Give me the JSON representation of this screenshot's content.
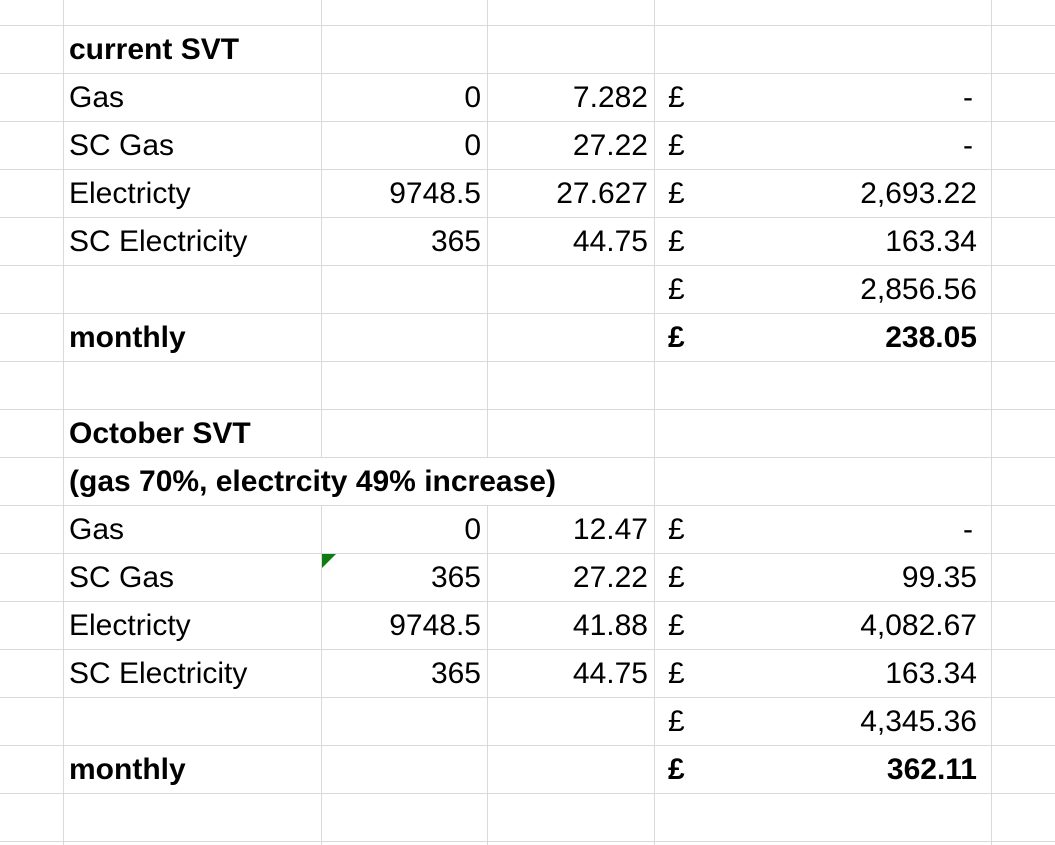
{
  "grid": {
    "gridline_color": "#D9D9D9",
    "error_indicator_color": "#107C10",
    "text_color": "#000000",
    "background_color": "#FFFFFF"
  },
  "sections": [
    {
      "title": "current SVT",
      "rows": [
        {
          "label": "Gas",
          "qty": "0",
          "rate": "7.282",
          "cur": "£",
          "amount": "-"
        },
        {
          "label": "SC Gas",
          "qty": "0",
          "rate": "27.22",
          "cur": "£",
          "amount": "-"
        },
        {
          "label": "Electricty",
          "qty": "9748.5",
          "rate": "27.627",
          "cur": "£",
          "amount": "2,693.22"
        },
        {
          "label": "SC Electricity",
          "qty": "365",
          "rate": "44.75",
          "cur": "£",
          "amount": "163.34"
        }
      ],
      "total": {
        "cur": "£",
        "amount": "2,856.56"
      },
      "monthly": {
        "label": "monthly",
        "cur": "£",
        "amount": "238.05"
      }
    },
    {
      "title": "October SVT",
      "subtitle": "(gas 70%, electrcity 49% increase)",
      "rows": [
        {
          "label": "Gas",
          "qty": "0",
          "rate": "12.47",
          "cur": "£",
          "amount": "-"
        },
        {
          "label": "SC Gas",
          "qty": "365",
          "rate": "27.22",
          "cur": "£",
          "amount": "99.35",
          "error_indicator": true
        },
        {
          "label": "Electricty",
          "qty": "9748.5",
          "rate": "41.88",
          "cur": "£",
          "amount": "4,082.67"
        },
        {
          "label": "SC Electricity",
          "qty": "365",
          "rate": "44.75",
          "cur": "£",
          "amount": "163.34"
        }
      ],
      "total": {
        "cur": "£",
        "amount": "4,345.36"
      },
      "monthly": {
        "label": "monthly",
        "cur": "£",
        "amount": "362.11"
      }
    }
  ]
}
